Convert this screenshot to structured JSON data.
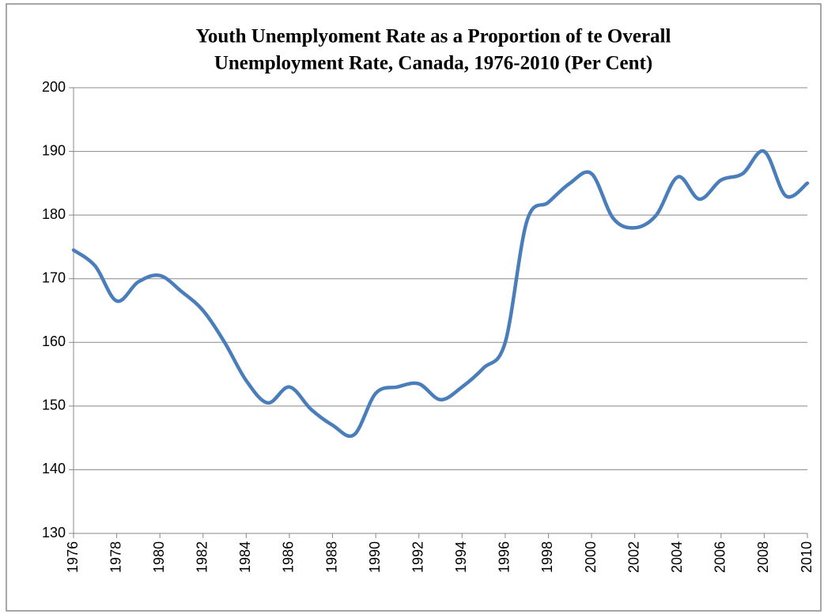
{
  "chart_data": {
    "type": "line",
    "title": [
      "Youth Unemplyoment Rate as a Proportion of te Overall",
      "Unemployment Rate, Canada, 1976-2010 (Per Cent)"
    ],
    "x": [
      1976,
      1977,
      1978,
      1979,
      1980,
      1981,
      1982,
      1983,
      1984,
      1985,
      1986,
      1987,
      1988,
      1989,
      1990,
      1991,
      1992,
      1993,
      1994,
      1995,
      1996,
      1997,
      1998,
      1999,
      2000,
      2001,
      2002,
      2003,
      2004,
      2005,
      2006,
      2007,
      2008,
      2009,
      2010
    ],
    "series": [
      {
        "color": "#4a7ebb",
        "values": [
          174.5,
          172,
          166.5,
          169.5,
          170.5,
          168,
          165,
          160,
          154,
          150.5,
          153,
          149.5,
          147,
          145.5,
          152,
          153,
          153.5,
          151,
          153,
          156,
          160,
          179,
          182,
          185,
          186.5,
          179.5,
          178,
          180,
          186,
          182.5,
          185.5,
          186.5,
          190,
          183,
          185
        ]
      }
    ],
    "xlim": [
      1976,
      2010
    ],
    "xticks": [
      1976,
      1978,
      1980,
      1982,
      1984,
      1986,
      1988,
      1990,
      1992,
      1994,
      1996,
      1998,
      2000,
      2002,
      2004,
      2006,
      2008,
      2010
    ],
    "ylim": [
      130,
      200
    ],
    "yticks": [
      130,
      140,
      150,
      160,
      170,
      180,
      190,
      200
    ],
    "grid": true
  }
}
